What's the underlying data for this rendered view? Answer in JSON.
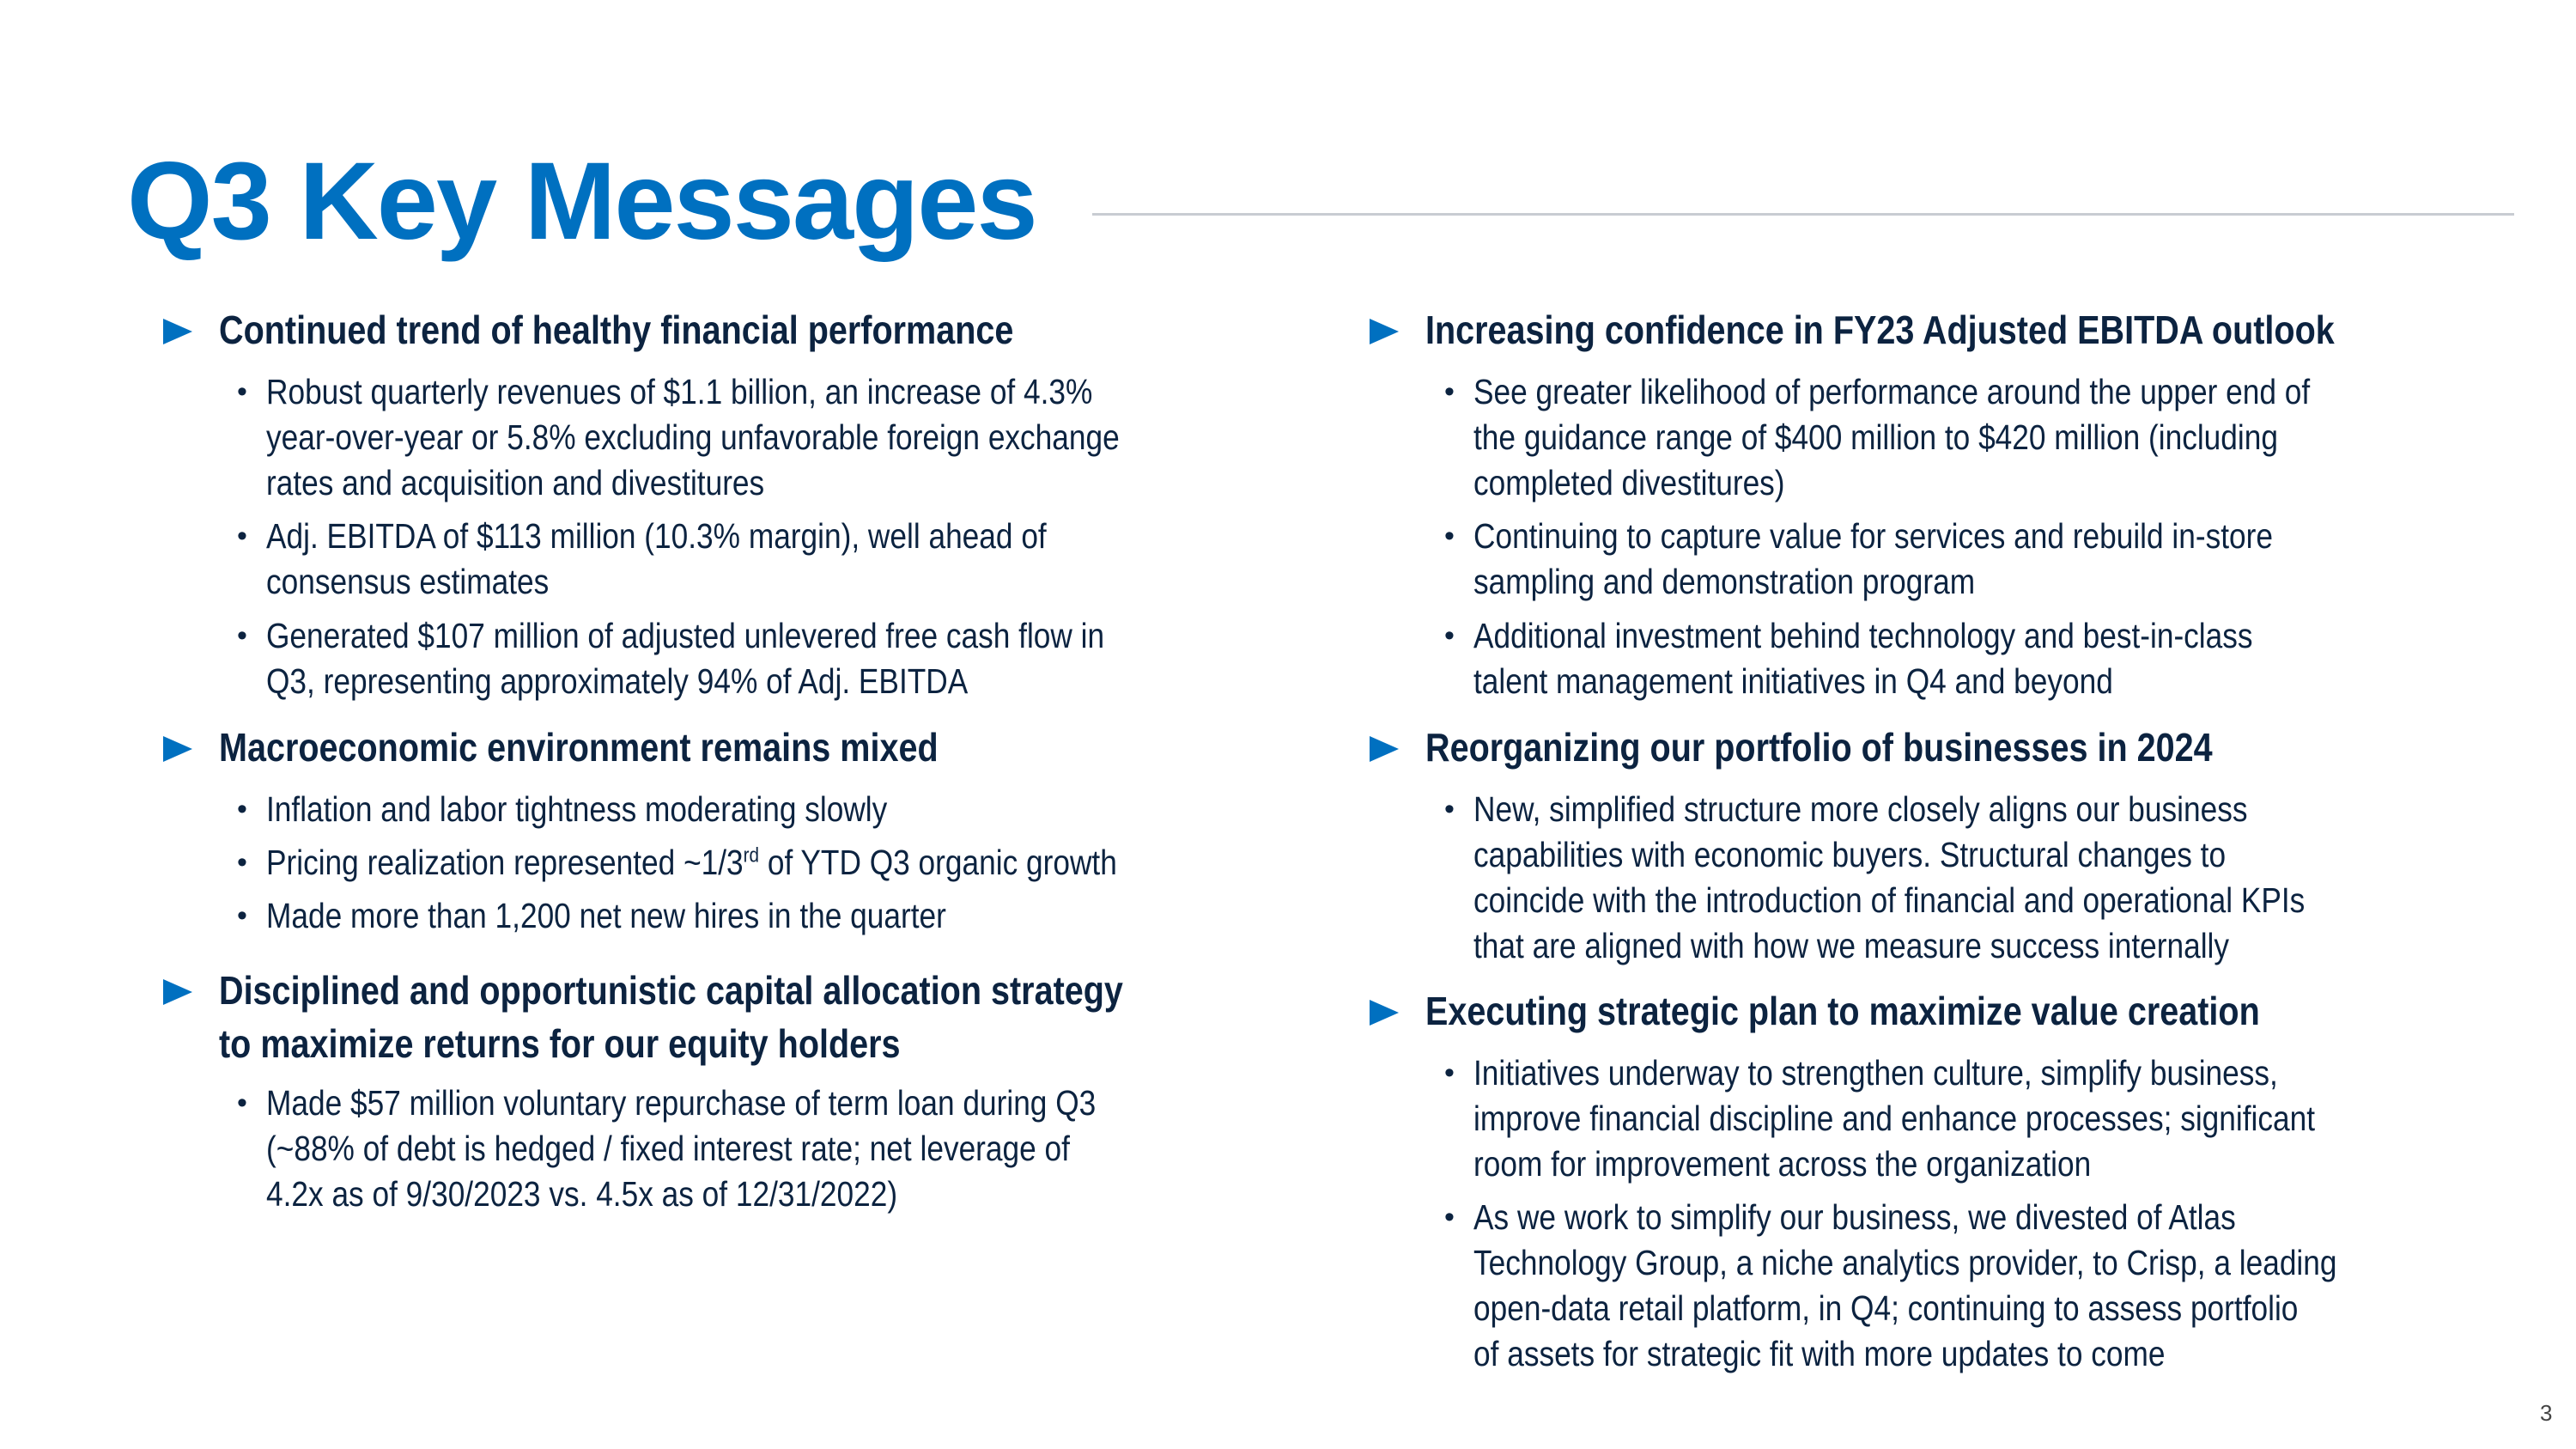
{
  "title": "Q3 Key Messages",
  "page_number": "3",
  "colors": {
    "accent": "#0070c0",
    "text": "#0c2340",
    "rule": "#c8ccd2"
  },
  "left": [
    {
      "heading": [
        "Continued trend of healthy financial performance"
      ],
      "bullets": [
        [
          "Robust quarterly revenues of $1.1 billion, an increase of 4.3%",
          "year-over-year or 5.8% excluding unfavorable foreign exchange",
          "rates and acquisition and divestitures"
        ],
        [
          "Adj. EBITDA of $113 million (10.3% margin), well ahead of",
          "consensus estimates"
        ],
        [
          "Generated $107 million of adjusted unlevered free cash flow in",
          "Q3, representing approximately 94% of Adj. EBITDA"
        ]
      ]
    },
    {
      "heading": [
        "Macroeconomic environment remains mixed"
      ],
      "bullets": [
        [
          "Inflation and labor tightness moderating slowly"
        ],
        [
          {
            "before": "Pricing realization represented ~1/3",
            "sup": "rd",
            "after": " of YTD Q3 organic growth"
          }
        ],
        [
          "Made more than 1,200 net new hires in the quarter"
        ]
      ]
    },
    {
      "heading": [
        "Disciplined and opportunistic capital allocation strategy",
        "to maximize returns for our equity holders"
      ],
      "bullets": [
        [
          "Made $57 million voluntary repurchase of term loan during Q3",
          "(~88% of debt is hedged / fixed interest rate; net leverage of",
          "4.2x as of 9/30/2023 vs. 4.5x as of 12/31/2022)"
        ]
      ]
    }
  ],
  "right": [
    {
      "heading": [
        "Increasing confidence in FY23 Adjusted EBITDA outlook"
      ],
      "bullets": [
        [
          "See greater likelihood of performance around the upper end of",
          "the guidance range of $400 million to $420 million (including",
          "completed divestitures)"
        ],
        [
          "Continuing to capture value for services and rebuild in-store",
          "sampling and demonstration program"
        ],
        [
          "Additional investment behind technology and best-in-class",
          "talent management initiatives in Q4 and beyond"
        ]
      ]
    },
    {
      "heading": [
        "Reorganizing our portfolio of businesses in 2024"
      ],
      "bullets": [
        [
          "New, simplified structure more closely aligns our business",
          "capabilities with economic buyers. Structural changes to",
          "coincide with the introduction of financial and operational KPIs",
          "that are aligned with how we measure success internally"
        ]
      ]
    },
    {
      "heading": [
        "Executing strategic plan to maximize value creation"
      ],
      "bullets": [
        [
          "Initiatives underway to strengthen culture, simplify business,",
          "improve financial discipline and enhance processes; significant",
          "room for improvement across the organization"
        ],
        [
          "As we work to simplify our business, we divested of Atlas",
          "Technology Group, a niche analytics provider, to Crisp, a leading",
          "open-data retail platform, in Q4; continuing to assess portfolio",
          "of assets for strategic fit with more updates to come"
        ]
      ]
    }
  ]
}
